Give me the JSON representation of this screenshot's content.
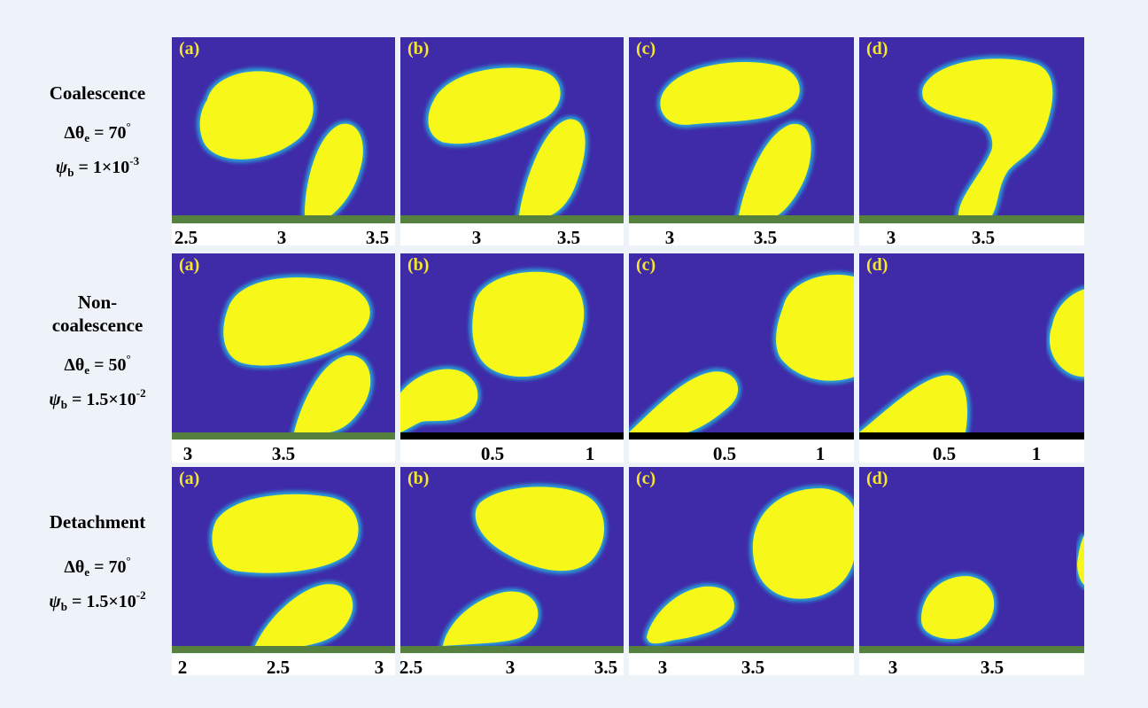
{
  "rows": [
    {
      "title": "Coalescence",
      "param1_label": "Δθ",
      "param1_sub": "e",
      "param1_value": " = 70",
      "param1_sup": "°",
      "param2_label": "ψ",
      "param2_sub": "b",
      "param2_value": " = 1×10",
      "param2_sup": "-3",
      "panels": [
        {
          "letter": "(a)",
          "ticks": [
            "2.5",
            "3",
            "3.5"
          ]
        },
        {
          "letter": "(b)",
          "ticks": [
            "3",
            "3.5"
          ]
        },
        {
          "letter": "(c)",
          "ticks": [
            "3",
            "3.5"
          ]
        },
        {
          "letter": "(d)",
          "ticks": [
            "3",
            "3.5"
          ]
        }
      ]
    },
    {
      "title": "Non-\ncoalescence",
      "param1_label": "Δθ",
      "param1_sub": "e",
      "param1_value": " = 50",
      "param1_sup": "°",
      "param2_label": "ψ",
      "param2_sub": "b",
      "param2_value": " = 1.5×10",
      "param2_sup": "-2",
      "panels": [
        {
          "letter": "(a)",
          "ticks": [
            "3",
            "3.5"
          ]
        },
        {
          "letter": "(b)",
          "ticks": [
            "0.5",
            "1"
          ]
        },
        {
          "letter": "(c)",
          "ticks": [
            "0.5",
            "1"
          ]
        },
        {
          "letter": "(d)",
          "ticks": [
            "0.5",
            "1"
          ]
        }
      ]
    },
    {
      "title": "Detachment",
      "param1_label": "Δθ",
      "param1_sub": "e",
      "param1_value": " = 70",
      "param1_sup": "°",
      "param2_label": "ψ",
      "param2_sub": "b",
      "param2_value": " = 1.5×10",
      "param2_sup": "-2",
      "panels": [
        {
          "letter": "(a)",
          "ticks": [
            "2",
            "2.5",
            "3"
          ]
        },
        {
          "letter": "(b)",
          "ticks": [
            "2.5",
            "3",
            "3.5"
          ]
        },
        {
          "letter": "(c)",
          "ticks": [
            "3",
            "3.5"
          ]
        },
        {
          "letter": "(d)",
          "ticks": [
            "3",
            "3.5"
          ]
        }
      ]
    }
  ],
  "colors": {
    "background_fluid": "#3f2aa8",
    "droplet": "#f7f71a",
    "droplet_edge": "#27a0d8",
    "wall_green": "#56803e",
    "wall_black": "#000000"
  }
}
